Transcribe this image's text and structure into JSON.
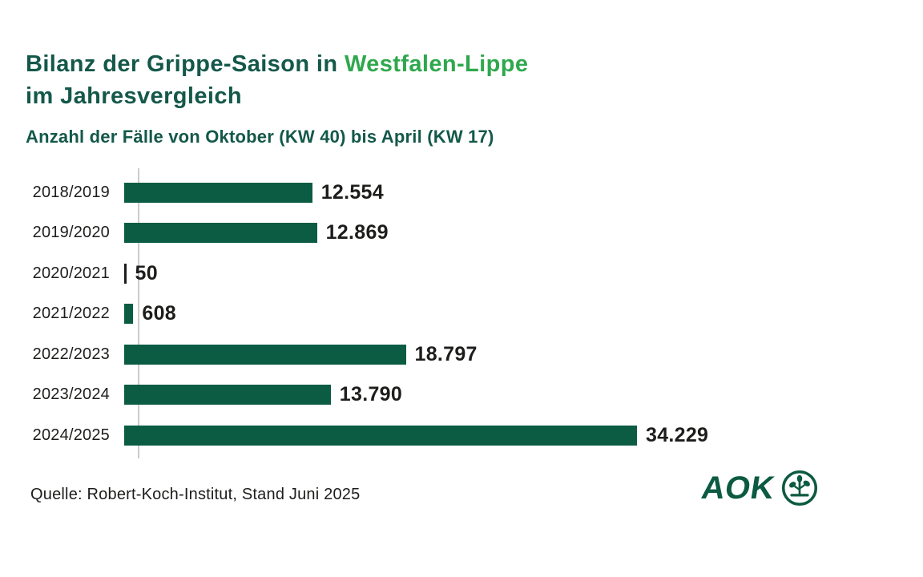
{
  "header": {
    "title_line1_prefix": "Bilanz der Grippe-Saison in ",
    "title_line1_highlight": "Westfalen-Lippe",
    "title_line2": "im Jahresvergleich",
    "subtitle": "Anzahl der Fälle von Oktober (KW 40) bis April (KW 17)"
  },
  "chart_data": {
    "type": "bar",
    "orientation": "horizontal",
    "title": "Bilanz der Grippe-Saison in Westfalen-Lippe im Jahresvergleich",
    "subtitle": "Anzahl der Fälle von Oktober (KW 40) bis April (KW 17)",
    "categories": [
      "2018/2019",
      "2019/2020",
      "2020/2021",
      "2021/2022",
      "2022/2023",
      "2023/2024",
      "2024/2025"
    ],
    "values": [
      12554,
      12869,
      50,
      608,
      18797,
      13790,
      34229
    ],
    "value_labels": [
      "12.554",
      "12.869",
      "50",
      "608",
      "18.797",
      "13.790",
      "34.229"
    ],
    "xlim": [
      0,
      34229
    ],
    "grid": false,
    "legend": false,
    "value_labels_position": "end-of-bar",
    "category_labels_position": "left"
  },
  "footer": {
    "source": "Quelle: Robert-Koch-Institut, Stand Juni 2025",
    "logo_text": "AOK",
    "logo_icon": "aok-tree-of-life-icon"
  },
  "colors": {
    "title_green": "#14584a",
    "accent_green": "#2fa84d",
    "bar_green": "#0c5c44",
    "thin_bar_dark": "#1d1d1b",
    "text_black": "#1d1d1b",
    "axis_gray": "#cccccc",
    "logo_green": "#0b5a41",
    "background": "#ffffff"
  }
}
